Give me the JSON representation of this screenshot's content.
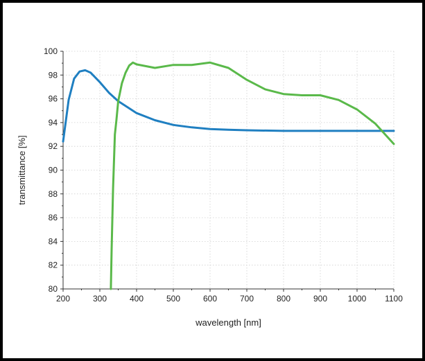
{
  "chart_data": {
    "type": "line",
    "title": "",
    "xlabel": "wavelength [nm]",
    "ylabel": "transmittance [%]",
    "xlim": [
      200,
      1100
    ],
    "ylim": [
      80,
      100
    ],
    "x_ticks": [
      200,
      300,
      400,
      500,
      600,
      700,
      800,
      900,
      1000,
      1100
    ],
    "y_ticks": [
      80,
      82,
      84,
      86,
      88,
      90,
      92,
      94,
      96,
      98,
      100
    ],
    "grid": true,
    "legend": "none",
    "series": [
      {
        "color": "#1f7fc1",
        "x": [
          200,
          215,
          230,
          245,
          260,
          275,
          300,
          325,
          350,
          375,
          400,
          450,
          500,
          550,
          600,
          650,
          700,
          800,
          900,
          1000,
          1100
        ],
        "y": [
          92.4,
          95.9,
          97.7,
          98.3,
          98.4,
          98.2,
          97.4,
          96.5,
          95.8,
          95.3,
          94.8,
          94.2,
          93.8,
          93.6,
          93.45,
          93.4,
          93.35,
          93.3,
          93.3,
          93.3,
          93.3
        ]
      },
      {
        "color": "#5ab94a",
        "x": [
          330,
          332,
          336,
          341,
          345,
          350,
          360,
          370,
          380,
          390,
          400,
          450,
          500,
          550,
          600,
          650,
          700,
          750,
          800,
          850,
          900,
          950,
          1000,
          1050,
          1100
        ],
        "y": [
          80,
          83.3,
          88.5,
          93.0,
          94.2,
          95.8,
          97.3,
          98.2,
          98.8,
          99.05,
          98.9,
          98.6,
          98.85,
          98.85,
          99.05,
          98.6,
          97.6,
          96.8,
          96.4,
          96.3,
          96.3,
          95.9,
          95.1,
          93.9,
          92.2
        ]
      }
    ]
  }
}
